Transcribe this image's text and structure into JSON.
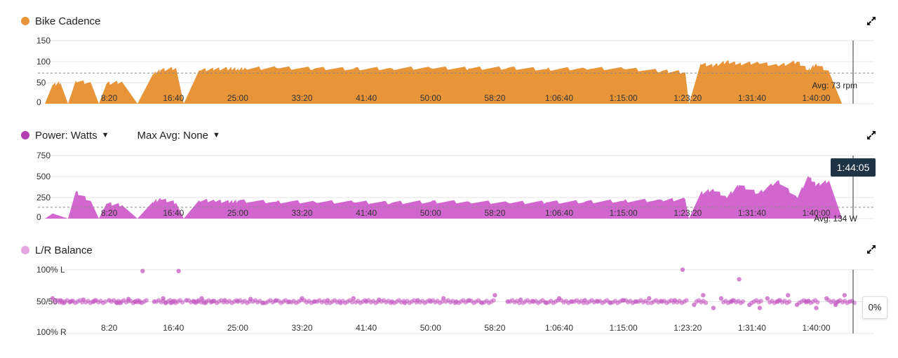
{
  "colors": {
    "cadence": "#e8953a",
    "power": "#d166cf",
    "balance": "#c45cc1",
    "balance_legend": "#e3a6e2",
    "axis_text": "#333333",
    "grid": "#e6e6e6",
    "avg_line": "#888888",
    "cursor": "#555555"
  },
  "panels": {
    "cadence": {
      "title": "Bike Cadence",
      "avg_label": "Avg: 73 rpm",
      "expand_icon": "expand-icon"
    },
    "power": {
      "title": "Power: Watts",
      "max_avg": "Max Avg: None",
      "avg_label": "Avg: 134 W",
      "expand_icon": "expand-icon"
    },
    "balance": {
      "title": "L/R Balance",
      "expand_icon": "expand-icon"
    }
  },
  "cursor": {
    "time_label": "1:44:05",
    "balance_value": "0%"
  },
  "chart_data": [
    {
      "type": "area",
      "name": "Bike Cadence",
      "unit": "rpm",
      "x_unit": "seconds",
      "x_ticks": [
        "8:20",
        "16:40",
        "25:00",
        "33:20",
        "41:40",
        "50:00",
        "58:20",
        "1:06:40",
        "1:15:00",
        "1:23:20",
        "1:31:40",
        "1:40:00"
      ],
      "y_ticks": [
        "0",
        "50",
        "100",
        "150"
      ],
      "ylim": [
        0,
        150
      ],
      "xlim": [
        0,
        6450
      ],
      "average": 73,
      "grid": true,
      "series": [
        {
          "x": [
            0,
            60,
            120,
            180,
            240,
            360,
            420,
            480,
            600,
            720,
            840,
            900,
            1020,
            1080,
            1200,
            1320,
            1440,
            1500,
            1560,
            1800,
            2100,
            2400,
            2700,
            3000,
            3300,
            3600,
            3900,
            4200,
            4500,
            4800,
            4980,
            5010,
            5100,
            5200,
            5300,
            5400,
            5550,
            5700,
            5850,
            5940,
            6000,
            6100,
            6200,
            6300
          ],
          "y": [
            0,
            45,
            50,
            0,
            55,
            48,
            0,
            48,
            52,
            0,
            70,
            80,
            85,
            0,
            80,
            82,
            84,
            82,
            84,
            85,
            84,
            83,
            84,
            85,
            84,
            85,
            82,
            84,
            83,
            78,
            75,
            0,
            95,
            90,
            100,
            95,
            98,
            90,
            100,
            80,
            95,
            75,
            0,
            0
          ]
        }
      ]
    },
    {
      "type": "area",
      "name": "Power",
      "unit": "W",
      "x_unit": "seconds",
      "x_ticks": [
        "8:20",
        "16:40",
        "25:00",
        "33:20",
        "41:40",
        "50:00",
        "58:20",
        "1:06:40",
        "1:15:00",
        "1:23:20",
        "1:31:40",
        "1:40:00"
      ],
      "y_ticks": [
        "0",
        "250",
        "500",
        "750"
      ],
      "ylim": [
        0,
        750
      ],
      "xlim": [
        0,
        6450
      ],
      "average": 134,
      "grid": true,
      "series": [
        {
          "x": [
            0,
            60,
            180,
            240,
            360,
            420,
            480,
            600,
            720,
            840,
            900,
            1020,
            1080,
            1200,
            1320,
            1440,
            1500,
            1800,
            2100,
            2400,
            2700,
            3000,
            3300,
            3600,
            3900,
            4200,
            4500,
            4800,
            4980,
            5010,
            5100,
            5200,
            5300,
            5400,
            5550,
            5700,
            5850,
            5940,
            6000,
            6100,
            6200,
            6300
          ],
          "y": [
            0,
            60,
            0,
            320,
            200,
            0,
            180,
            160,
            0,
            200,
            230,
            190,
            0,
            220,
            210,
            200,
            210,
            200,
            200,
            195,
            190,
            200,
            200,
            190,
            195,
            200,
            210,
            220,
            230,
            0,
            300,
            350,
            250,
            400,
            300,
            450,
            250,
            500,
            400,
            450,
            0,
            0
          ]
        }
      ]
    },
    {
      "type": "scatter",
      "name": "L/R Balance",
      "x_unit": "seconds",
      "x_ticks": [
        "8:20",
        "16:40",
        "25:00",
        "33:20",
        "41:40",
        "50:00",
        "58:20",
        "1:06:40",
        "1:15:00",
        "1:23:20",
        "1:31:40",
        "1:40:00"
      ],
      "y_ticks": [
        "100% R",
        "50/50",
        "100% L"
      ],
      "ylim": [
        0,
        100
      ],
      "xlim": [
        0,
        6450
      ],
      "series": [
        {
          "x": [
            60,
            120,
            200,
            300,
            380,
            500,
            560,
            650,
            700,
            760,
            850,
            920,
            980,
            1040,
            1100,
            1160,
            1220,
            1300,
            1400,
            1500,
            1600,
            1700,
            1800,
            1900,
            2000,
            2100,
            2200,
            2300,
            2400,
            2500,
            2600,
            2700,
            2800,
            2900,
            3000,
            3100,
            3200,
            3300,
            3400,
            3500,
            3600,
            3700,
            3800,
            3900,
            4000,
            4100,
            4200,
            4300,
            4400,
            4500,
            4600,
            4700,
            4800,
            4900,
            4960,
            5050,
            5120,
            5200,
            5260,
            5340,
            5400,
            5480,
            5560,
            5620,
            5700,
            5780,
            5850,
            5920,
            6000,
            6080,
            6150,
            6220,
            6260
          ],
          "y": [
            55,
            52,
            50,
            53,
            50,
            52,
            48,
            54,
            50,
            98,
            50,
            55,
            48,
            98,
            52,
            50,
            55,
            50,
            52,
            50,
            54,
            48,
            52,
            50,
            55,
            50,
            52,
            48,
            55,
            50,
            53,
            50,
            48,
            52,
            50,
            55,
            50,
            52,
            48,
            60,
            50,
            53,
            50,
            48,
            55,
            50,
            52,
            50,
            48,
            52,
            50,
            55,
            50,
            52,
            100,
            45,
            60,
            40,
            55,
            50,
            85,
            45,
            40,
            55,
            50,
            60,
            45,
            50,
            40,
            55,
            45,
            60,
            50
          ]
        }
      ]
    }
  ]
}
